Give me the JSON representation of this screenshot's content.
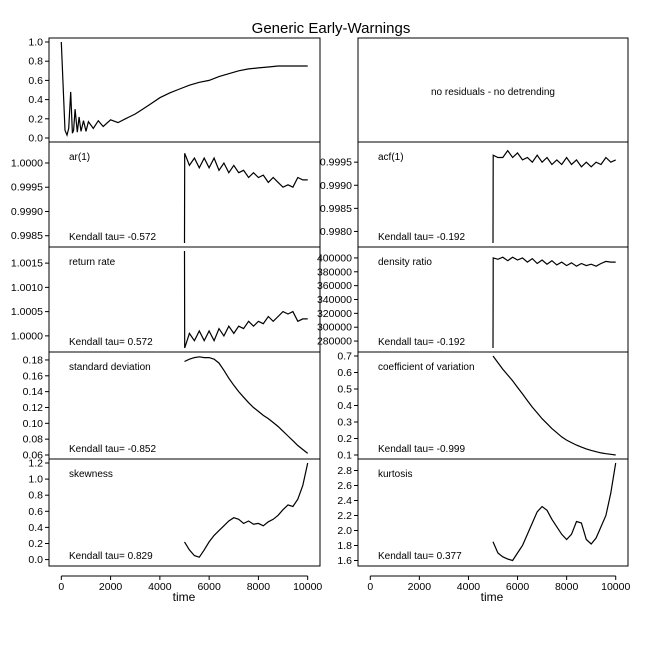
{
  "title": "Generic Early-Warnings",
  "xlabel": "time",
  "x_ticks": [
    0,
    2000,
    4000,
    6000,
    8000,
    10000
  ],
  "note": "no residuals - no detrending",
  "chart_data": [
    {
      "type": "line",
      "name": "",
      "ylim": [
        0,
        1.0
      ],
      "yticks": [
        0.0,
        0.2,
        0.4,
        0.6,
        0.8,
        1.0
      ],
      "x": [
        0,
        80,
        150,
        230,
        300,
        380,
        450,
        500,
        560,
        650,
        720,
        800,
        900,
        1000,
        1100,
        1300,
        1500,
        1700,
        2000,
        2300,
        2600,
        3000,
        3300,
        3600,
        4000,
        4400,
        4800,
        5200,
        5600,
        6000,
        6400,
        6800,
        7200,
        7600,
        8000,
        8400,
        8800,
        9200,
        9600,
        10000
      ],
      "y": [
        1.0,
        0.5,
        0.08,
        0.03,
        0.1,
        0.48,
        0.05,
        0.08,
        0.3,
        0.06,
        0.22,
        0.07,
        0.18,
        0.07,
        0.17,
        0.1,
        0.18,
        0.12,
        0.19,
        0.16,
        0.2,
        0.25,
        0.3,
        0.35,
        0.42,
        0.47,
        0.51,
        0.55,
        0.58,
        0.6,
        0.64,
        0.67,
        0.7,
        0.72,
        0.73,
        0.74,
        0.75,
        0.75,
        0.75,
        0.75
      ]
    },
    {
      "type": "line",
      "name": "ar(1)",
      "kendall": "Kendall tau= -0.572",
      "ylim": [
        0.99835,
        1.00035
      ],
      "yticks": [
        "0.9985",
        "0.9990",
        "0.9995",
        "1.0000"
      ],
      "x": [
        5000,
        5010,
        5200,
        5400,
        5600,
        5800,
        6000,
        6200,
        6400,
        6600,
        6800,
        7000,
        7200,
        7400,
        7600,
        7800,
        8000,
        8200,
        8400,
        8600,
        8800,
        9000,
        9200,
        9400,
        9600,
        9800,
        10000
      ],
      "y": [
        0.99835,
        1.0002,
        0.99995,
        1.0001,
        0.9999,
        1.0001,
        0.9999,
        1.0001,
        0.99985,
        1.0,
        0.9998,
        0.99995,
        0.9998,
        0.99985,
        0.9997,
        0.9998,
        0.9997,
        0.99975,
        0.9996,
        0.9997,
        0.9996,
        0.9995,
        0.99955,
        0.9995,
        0.9997,
        0.99965,
        0.99965
      ]
    },
    {
      "type": "line",
      "name": "acf(1)",
      "kendall": "Kendall tau= -0.192",
      "ylim": [
        0.99775,
        0.99985
      ],
      "yticks": [
        "0.9980",
        "0.9985",
        "0.9990",
        "0.9995"
      ],
      "x": [
        5000,
        5010,
        5200,
        5400,
        5600,
        5800,
        6000,
        6200,
        6400,
        6600,
        6800,
        7000,
        7200,
        7400,
        7600,
        7800,
        8000,
        8200,
        8400,
        8600,
        8800,
        9000,
        9200,
        9400,
        9600,
        9800,
        10000
      ],
      "y": [
        0.99775,
        0.99965,
        0.9996,
        0.9996,
        0.99975,
        0.9996,
        0.9997,
        0.99955,
        0.9996,
        0.9995,
        0.99965,
        0.9995,
        0.9996,
        0.99945,
        0.99955,
        0.99945,
        0.9996,
        0.99945,
        0.99955,
        0.9994,
        0.9995,
        0.9994,
        0.9995,
        0.99945,
        0.9996,
        0.9995,
        0.99955
      ]
    },
    {
      "type": "line",
      "name": "return rate",
      "kendall": "Kendall tau= 0.572",
      "ylim": [
        0.99975,
        1.00175
      ],
      "yticks": [
        "1.0000",
        "1.0005",
        "1.0010",
        "1.0015"
      ],
      "x": [
        5000,
        5010,
        5200,
        5400,
        5600,
        5800,
        6000,
        6200,
        6400,
        6600,
        6800,
        7000,
        7200,
        7400,
        7600,
        7800,
        8000,
        8200,
        8400,
        8600,
        8800,
        9000,
        9200,
        9400,
        9600,
        9800,
        10000
      ],
      "y": [
        1.00175,
        0.99975,
        1.00005,
        0.9999,
        1.0001,
        0.9999,
        1.0001,
        0.9999,
        1.00015,
        1.0,
        1.0002,
        1.00005,
        1.0002,
        1.00015,
        1.0003,
        1.0002,
        1.0003,
        1.00025,
        1.0004,
        1.0003,
        1.0004,
        1.0005,
        1.00045,
        1.0005,
        1.0003,
        1.00035,
        1.00035
      ]
    },
    {
      "type": "line",
      "name": "density ratio",
      "kendall": "Kendall tau= -0.192",
      "ylim": [
        270000,
        410000
      ],
      "yticks": [
        "280000",
        "300000",
        "320000",
        "340000",
        "360000",
        "380000",
        "400000"
      ],
      "x": [
        5000,
        5010,
        5200,
        5400,
        5600,
        5800,
        6000,
        6200,
        6400,
        6600,
        6800,
        7000,
        7200,
        7400,
        7600,
        7800,
        8000,
        8200,
        8400,
        8600,
        8800,
        9000,
        9200,
        9400,
        9600,
        9800,
        10000
      ],
      "y": [
        270000,
        400000,
        398000,
        401000,
        396000,
        401000,
        397000,
        400000,
        394000,
        399000,
        392000,
        397000,
        391000,
        396000,
        390000,
        394000,
        389000,
        393000,
        388000,
        392000,
        389000,
        391000,
        388000,
        392000,
        395000,
        394000,
        394000
      ]
    },
    {
      "type": "line",
      "name": "standard deviation",
      "kendall": "Kendall tau= -0.852",
      "ylim": [
        0.06,
        0.185
      ],
      "yticks": [
        "0.06",
        "0.08",
        "0.10",
        "0.12",
        "0.14",
        "0.16",
        "0.18"
      ],
      "x": [
        5000,
        5200,
        5400,
        5600,
        5800,
        6000,
        6200,
        6400,
        6600,
        6800,
        7000,
        7200,
        7400,
        7600,
        7800,
        8000,
        8200,
        8400,
        8600,
        8800,
        9000,
        9200,
        9400,
        9600,
        9800,
        10000
      ],
      "y": [
        0.178,
        0.181,
        0.183,
        0.184,
        0.183,
        0.183,
        0.181,
        0.176,
        0.167,
        0.157,
        0.148,
        0.14,
        0.133,
        0.126,
        0.12,
        0.115,
        0.11,
        0.106,
        0.101,
        0.096,
        0.09,
        0.084,
        0.078,
        0.072,
        0.067,
        0.062
      ]
    },
    {
      "type": "line",
      "name": "coefficient of variation",
      "kendall": "Kendall tau= -0.999",
      "ylim": [
        0.1,
        0.7
      ],
      "yticks": [
        "0.1",
        "0.2",
        "0.3",
        "0.4",
        "0.5",
        "0.6",
        "0.7"
      ],
      "x": [
        5000,
        5200,
        5400,
        5600,
        5800,
        6000,
        6200,
        6400,
        6600,
        6800,
        7000,
        7200,
        7400,
        7600,
        7800,
        8000,
        8200,
        8400,
        8600,
        8800,
        9000,
        9200,
        9400,
        9600,
        9800,
        10000
      ],
      "y": [
        0.7,
        0.66,
        0.62,
        0.585,
        0.55,
        0.51,
        0.47,
        0.43,
        0.39,
        0.355,
        0.32,
        0.29,
        0.26,
        0.235,
        0.21,
        0.19,
        0.175,
        0.16,
        0.148,
        0.137,
        0.128,
        0.12,
        0.113,
        0.108,
        0.104,
        0.1
      ]
    },
    {
      "type": "line",
      "name": "skewness",
      "kendall": "Kendall tau= 0.829",
      "ylim": [
        -0.03,
        1.2
      ],
      "yticks": [
        "0.0",
        "0.2",
        "0.4",
        "0.6",
        "0.8",
        "1.0",
        "1.2"
      ],
      "x": [
        5000,
        5200,
        5400,
        5600,
        5800,
        6000,
        6200,
        6400,
        6600,
        6800,
        7000,
        7200,
        7400,
        7600,
        7800,
        8000,
        8200,
        8400,
        8600,
        8800,
        9000,
        9200,
        9400,
        9600,
        9800,
        10000
      ],
      "y": [
        0.22,
        0.12,
        0.05,
        0.03,
        0.12,
        0.22,
        0.3,
        0.36,
        0.42,
        0.48,
        0.52,
        0.5,
        0.45,
        0.48,
        0.44,
        0.45,
        0.42,
        0.47,
        0.5,
        0.55,
        0.62,
        0.68,
        0.66,
        0.75,
        0.92,
        1.2
      ]
    },
    {
      "type": "line",
      "name": "kurtosis",
      "kendall": "Kendall tau= 0.377",
      "ylim": [
        1.58,
        2.9
      ],
      "yticks": [
        "1.6",
        "1.8",
        "2.0",
        "2.2",
        "2.4",
        "2.6",
        "2.8"
      ],
      "x": [
        5000,
        5200,
        5400,
        5600,
        5800,
        6000,
        6200,
        6400,
        6600,
        6800,
        7000,
        7200,
        7400,
        7600,
        7800,
        8000,
        8200,
        8400,
        8600,
        8800,
        9000,
        9200,
        9400,
        9600,
        9800,
        10000
      ],
      "y": [
        1.85,
        1.7,
        1.65,
        1.62,
        1.6,
        1.7,
        1.8,
        1.95,
        2.1,
        2.25,
        2.32,
        2.27,
        2.15,
        2.05,
        1.95,
        1.88,
        1.95,
        2.12,
        2.1,
        1.88,
        1.82,
        1.9,
        2.05,
        2.2,
        2.5,
        2.9
      ]
    }
  ]
}
